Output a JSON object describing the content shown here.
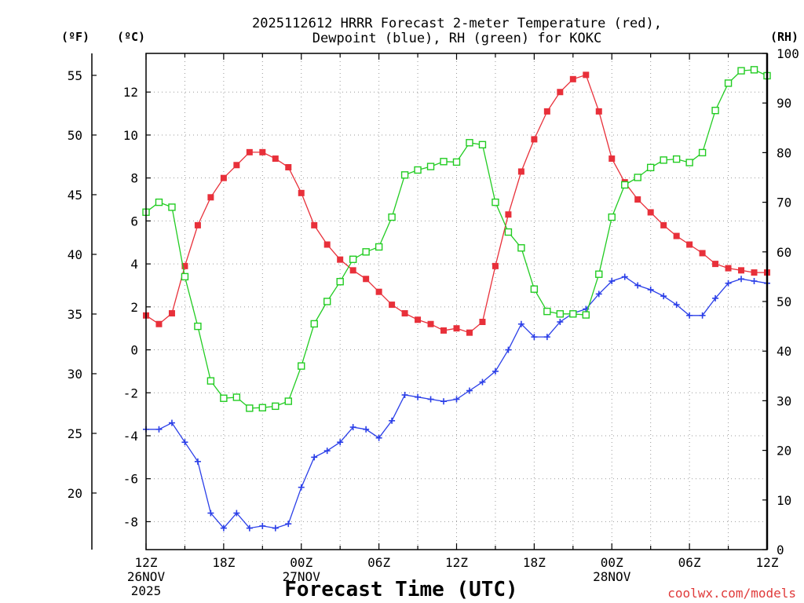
{
  "chart_data": {
    "type": "line",
    "title_line1": "2025112612 HRRR Forecast 2-meter Temperature (red),",
    "title_line2": "Dewpoint (blue), RH (green) for KOKC",
    "xlabel": "Forecast Time (UTC)",
    "credit": "coolwx.com/models",
    "unit_f": "(ºF)",
    "unit_c": "(ºC)",
    "unit_rh": "(RH)",
    "grid": true,
    "xlim": [
      0,
      48
    ],
    "ylim_c": [
      -9.3,
      13.8
    ],
    "ylim_rh": [
      0,
      100
    ],
    "x_ticks": [
      {
        "x": 0,
        "l1": "12Z",
        "l2": "26NOV",
        "l3": "2025"
      },
      {
        "x": 6,
        "l1": "18Z",
        "l2": "",
        "l3": ""
      },
      {
        "x": 12,
        "l1": "00Z",
        "l2": "27NOV",
        "l3": ""
      },
      {
        "x": 18,
        "l1": "06Z",
        "l2": "",
        "l3": ""
      },
      {
        "x": 24,
        "l1": "12Z",
        "l2": "",
        "l3": ""
      },
      {
        "x": 30,
        "l1": "18Z",
        "l2": "",
        "l3": ""
      },
      {
        "x": 36,
        "l1": "00Z",
        "l2": "28NOV",
        "l3": ""
      },
      {
        "x": 42,
        "l1": "06Z",
        "l2": "",
        "l3": ""
      },
      {
        "x": 48,
        "l1": "12Z",
        "l2": "",
        "l3": ""
      }
    ],
    "y_ticks_c": [
      -8,
      -6,
      -4,
      -2,
      0,
      2,
      4,
      6,
      8,
      10,
      12
    ],
    "y_ticks_f": [
      20,
      25,
      30,
      35,
      40,
      45,
      50,
      55
    ],
    "y_ticks_rh": [
      0,
      10,
      20,
      30,
      40,
      50,
      60,
      70,
      80,
      90,
      100
    ],
    "series": [
      {
        "axis": "c",
        "color": "#e8303a",
        "marker": "filled-square",
        "values": [
          1.6,
          1.2,
          1.7,
          3.9,
          5.8,
          7.1,
          8.0,
          8.6,
          9.2,
          9.2,
          8.9,
          8.5,
          7.3,
          5.8,
          4.9,
          4.2,
          3.7,
          3.3,
          2.7,
          2.1,
          1.7,
          1.4,
          1.2,
          0.9,
          1.0,
          0.8,
          1.3,
          3.9,
          6.3,
          8.3,
          9.8,
          11.1,
          12.0,
          12.6,
          12.8,
          11.1,
          8.9,
          7.8,
          7.0,
          6.4,
          5.8,
          5.3,
          4.9,
          4.5,
          4.0,
          3.8,
          3.7,
          3.6,
          3.6
        ]
      },
      {
        "axis": "c",
        "color": "#2b3fe8",
        "marker": "plus",
        "values": [
          -3.7,
          -3.7,
          -3.4,
          -4.3,
          -5.2,
          -7.6,
          -8.3,
          -7.6,
          -8.3,
          -8.2,
          -8.3,
          -8.1,
          -6.4,
          -5.0,
          -4.7,
          -4.3,
          -3.6,
          -3.7,
          -4.1,
          -3.3,
          -2.1,
          -2.2,
          -2.3,
          -2.4,
          -2.3,
          -1.9,
          -1.5,
          -1.0,
          0.0,
          1.2,
          0.6,
          0.6,
          1.3,
          1.7,
          1.9,
          2.6,
          3.2,
          3.4,
          3.0,
          2.8,
          2.5,
          2.1,
          1.6,
          1.6,
          2.4,
          3.1,
          3.3,
          3.2,
          3.1
        ]
      },
      {
        "axis": "rh",
        "color": "#22cc22",
        "marker": "open-square",
        "values": [
          68,
          70,
          69,
          55,
          45,
          34,
          30.5,
          30.7,
          28.5,
          28.6,
          28.9,
          29.9,
          37,
          45.5,
          50,
          54,
          58.5,
          60,
          61,
          67,
          75.5,
          76.5,
          77.2,
          78.2,
          78.1,
          82,
          81.6,
          70,
          64,
          60.8,
          52.5,
          48,
          47.5,
          47.5,
          47.3,
          55.5,
          67,
          73.5,
          75,
          77,
          78.5,
          78.7,
          78,
          80,
          88.5,
          94,
          96.5,
          96.7,
          95.5
        ]
      }
    ]
  }
}
